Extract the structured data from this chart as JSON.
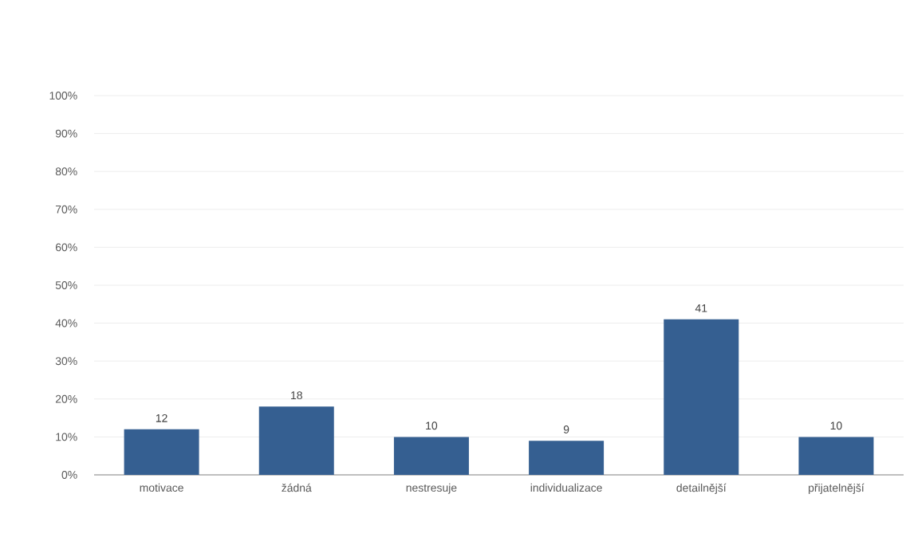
{
  "chart_data": {
    "type": "bar",
    "categories": [
      "motivace",
      "žádná",
      "nestresuje",
      "individualizace",
      "detailnější",
      "přijatelnější"
    ],
    "values": [
      12,
      18,
      10,
      9,
      41,
      10
    ],
    "color": "#355f91",
    "data_labels": true,
    "ylim": [
      0,
      100
    ],
    "yticks": [
      {
        "value": 0,
        "label": "0%"
      },
      {
        "value": 10,
        "label": "10%"
      },
      {
        "value": 20,
        "label": "20%"
      },
      {
        "value": 30,
        "label": "30%"
      },
      {
        "value": 40,
        "label": "40%"
      },
      {
        "value": 50,
        "label": "50%"
      },
      {
        "value": 60,
        "label": "60%"
      },
      {
        "value": 70,
        "label": "70%"
      },
      {
        "value": 80,
        "label": "80%"
      },
      {
        "value": 90,
        "label": "90%"
      },
      {
        "value": 100,
        "label": "100%"
      }
    ],
    "grid": "y"
  }
}
